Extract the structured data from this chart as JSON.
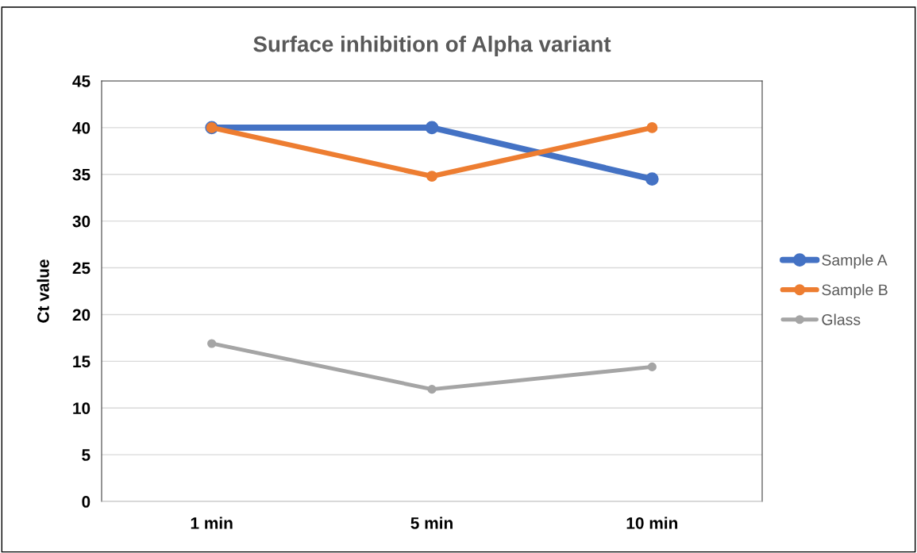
{
  "chart_data": {
    "type": "line",
    "title": "Surface inhibition of Alpha variant",
    "ylabel": "Ct value",
    "categories": [
      "1 min",
      "5 min",
      "10 min"
    ],
    "series": [
      {
        "name": "Sample A",
        "color": "#4472c4",
        "values": [
          40,
          40,
          34.5
        ]
      },
      {
        "name": "Sample B",
        "color": "#ed7d31",
        "values": [
          40,
          34.8,
          40
        ]
      },
      {
        "name": "Glass",
        "color": "#a5a5a5",
        "values": [
          16.9,
          12.0,
          14.4
        ]
      }
    ],
    "ylim": [
      0,
      45
    ],
    "yticks": [
      0,
      5,
      10,
      15,
      20,
      25,
      30,
      35,
      40,
      45
    ],
    "grid": "y",
    "legend": "right",
    "marker": "circle",
    "line_style": "solid"
  }
}
